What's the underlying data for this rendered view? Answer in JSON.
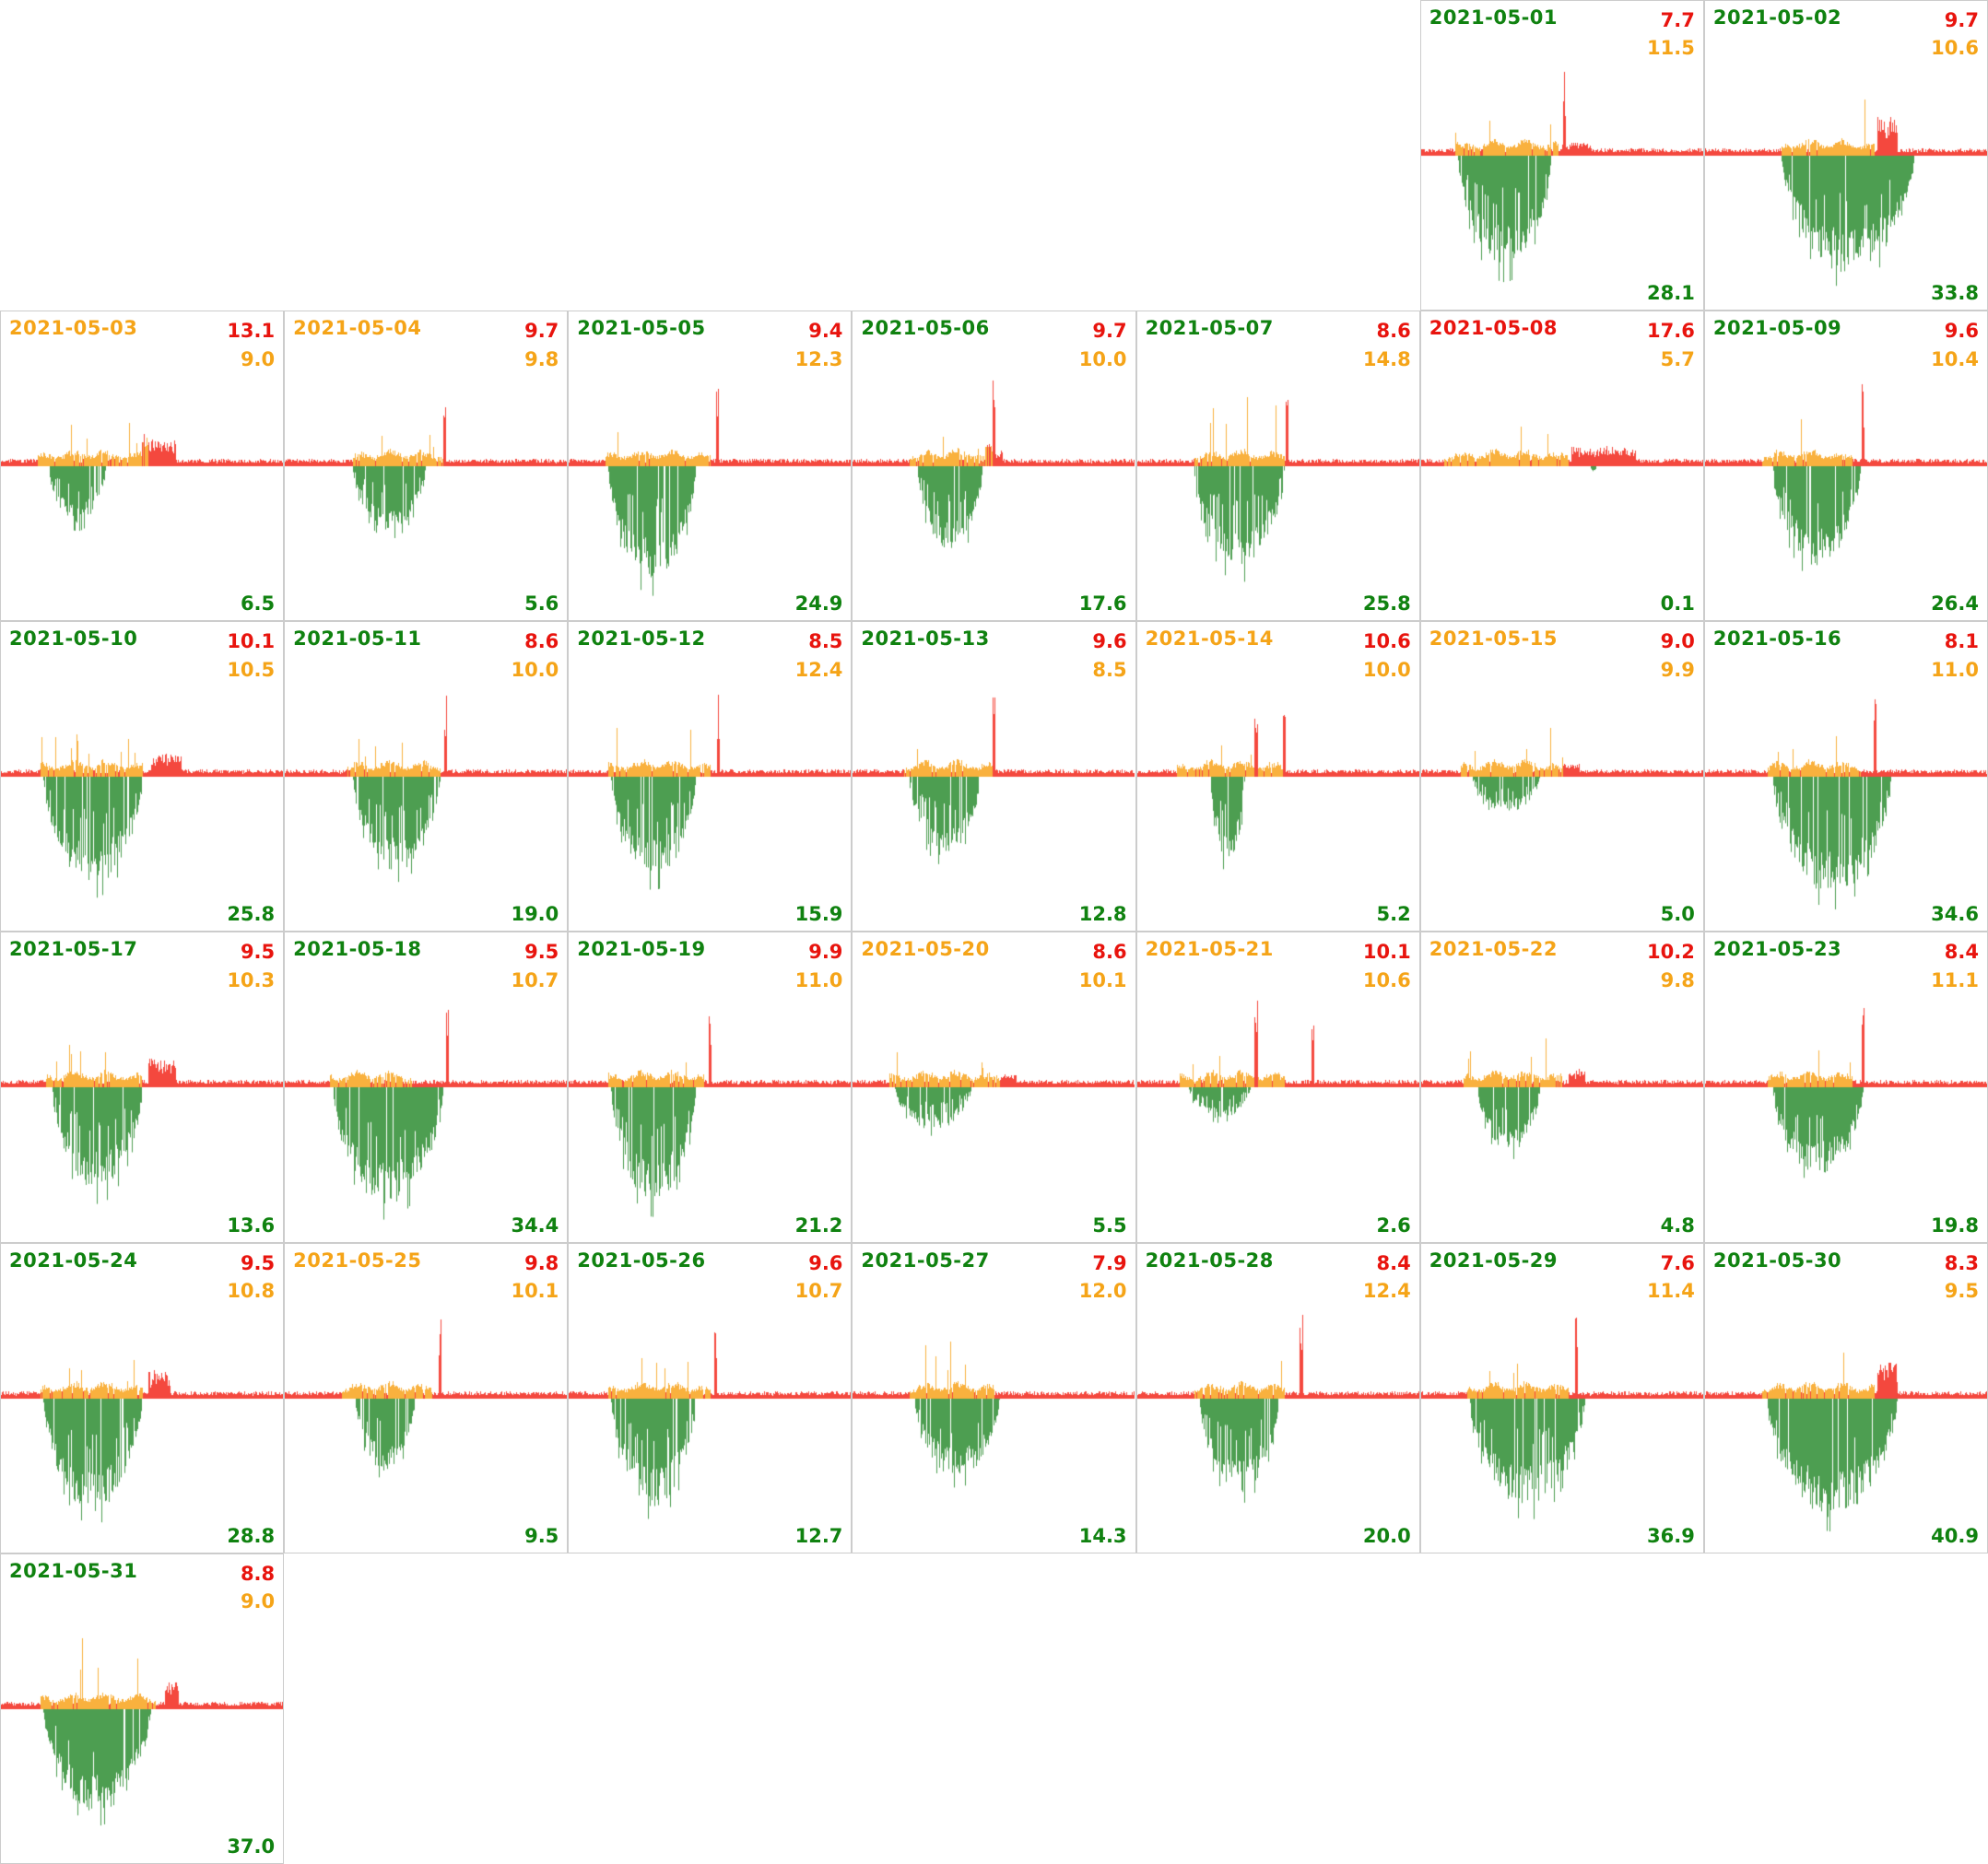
{
  "colors": {
    "bar_red": "#f4483e",
    "bar_orange": "#f9b13e",
    "bar_green": "#4d9e51",
    "text_red": "#e8140e",
    "text_orange": "#f5a418",
    "text_green": "#108210",
    "panel_border": "#cccccc",
    "background": "#ffffff"
  },
  "chart_data": {
    "type": "bar",
    "layout": "calendar-small-multiples-7-columns",
    "description": "One mini bar-chart per day of May 2021. Red/orange bars extend above a midline, green bars extend below it. Each panel shows a red value and an orange value top-right, a green value bottom-right, and the date top-left colored green, orange or red.",
    "legend_position": "none",
    "grid": "off",
    "panels": [
      {
        "date": "2021-05-01",
        "date_color": "green",
        "value_red": "7.7",
        "value_orange": "11.5",
        "value_green": "28.1",
        "row": 1,
        "col": 6,
        "wave": {
          "g": [
            0.13,
            0.46
          ],
          "d": 0.78,
          "sp": 0.6,
          "o": [
            0.12,
            0.49
          ],
          "oh": 0.55,
          "hump": [
            0.5,
            0.6,
            0.18
          ],
          "rs": 0.505
        }
      },
      {
        "date": "2021-05-02",
        "date_color": "green",
        "value_red": "9.7",
        "value_orange": "10.6",
        "value_green": "33.8",
        "row": 1,
        "col": 7,
        "wave": {
          "g": [
            0.27,
            0.74
          ],
          "d": 0.82,
          "sp": 0.35,
          "o": [
            0.27,
            0.6
          ],
          "oh": 0.75,
          "hump": [
            0.61,
            0.68,
            0.85
          ]
        }
      },
      {
        "date": "2021-05-03",
        "date_color": "orange",
        "value_red": "13.1",
        "value_orange": "9.0",
        "value_green": "6.5",
        "row": 2,
        "col": 1,
        "wave": {
          "g": [
            0.17,
            0.37
          ],
          "d": 0.4,
          "sp": 0.8,
          "o": [
            0.13,
            0.52
          ],
          "oh": 0.45,
          "hump": [
            0.5,
            0.62,
            0.55
          ]
        }
      },
      {
        "date": "2021-05-04",
        "date_color": "orange",
        "value_red": "9.7",
        "value_orange": "9.8",
        "value_green": "5.6",
        "row": 2,
        "col": 2,
        "wave": {
          "g": [
            0.24,
            0.5
          ],
          "d": 0.45,
          "sp": 0.95,
          "o": [
            0.24,
            0.56
          ],
          "oh": 0.3,
          "rs": 0.565
        }
      },
      {
        "date": "2021-05-05",
        "date_color": "green",
        "value_red": "9.4",
        "value_orange": "12.3",
        "value_green": "24.9",
        "row": 2,
        "col": 3,
        "wave": {
          "g": [
            0.14,
            0.45
          ],
          "d": 0.8,
          "sp": 0.7,
          "o": [
            0.13,
            0.5
          ],
          "oh": 0.5,
          "rs": 0.525
        }
      },
      {
        "date": "2021-05-06",
        "date_color": "green",
        "value_red": "9.7",
        "value_orange": "10.0",
        "value_green": "17.6",
        "row": 2,
        "col": 4,
        "wave": {
          "g": [
            0.23,
            0.46
          ],
          "d": 0.6,
          "sp": 0.6,
          "o": [
            0.2,
            0.5
          ],
          "oh": 0.35,
          "hump": [
            0.47,
            0.53,
            0.25
          ],
          "rs": 0.5
        }
      },
      {
        "date": "2021-05-07",
        "date_color": "green",
        "value_red": "8.6",
        "value_orange": "14.8",
        "value_green": "25.8",
        "row": 2,
        "col": 5,
        "wave": {
          "g": [
            0.2,
            0.52
          ],
          "d": 0.72,
          "sp": 0.8,
          "o": [
            0.2,
            0.52
          ],
          "oh": 0.9,
          "rs": 0.53
        }
      },
      {
        "date": "2021-05-08",
        "date_color": "red",
        "value_red": "17.6",
        "value_orange": "5.7",
        "value_green": "0.1",
        "row": 2,
        "col": 6,
        "wave": {
          "g": [
            0.6,
            0.62
          ],
          "d": 0.04,
          "sp": 0.5,
          "o": [
            0.08,
            0.52
          ],
          "oh": 0.35,
          "hump": [
            0.53,
            0.76,
            0.35
          ]
        }
      },
      {
        "date": "2021-05-09",
        "date_color": "green",
        "value_red": "9.6",
        "value_orange": "10.4",
        "value_green": "26.4",
        "row": 2,
        "col": 7,
        "wave": {
          "g": [
            0.24,
            0.55
          ],
          "d": 0.7,
          "sp": 0.6,
          "o": [
            0.2,
            0.52
          ],
          "oh": 0.45,
          "rs": 0.56
        }
      },
      {
        "date": "2021-05-10",
        "date_color": "green",
        "value_red": "10.1",
        "value_orange": "10.5",
        "value_green": "25.8",
        "row": 3,
        "col": 1,
        "wave": {
          "g": [
            0.15,
            0.5
          ],
          "d": 0.75,
          "sp": 0.75,
          "o": [
            0.14,
            0.5
          ],
          "oh": 0.5,
          "hump": [
            0.53,
            0.64,
            0.45
          ]
        }
      },
      {
        "date": "2021-05-11",
        "date_color": "green",
        "value_red": "8.6",
        "value_orange": "10.0",
        "value_green": "19.0",
        "row": 3,
        "col": 2,
        "wave": {
          "g": [
            0.24,
            0.55
          ],
          "d": 0.65,
          "sp": 0.7,
          "o": [
            0.22,
            0.55
          ],
          "oh": 0.35,
          "rs": 0.57
        }
      },
      {
        "date": "2021-05-12",
        "date_color": "green",
        "value_red": "8.5",
        "value_orange": "12.4",
        "value_green": "15.9",
        "row": 3,
        "col": 3,
        "wave": {
          "g": [
            0.15,
            0.45
          ],
          "d": 0.7,
          "sp": 0.75,
          "o": [
            0.14,
            0.5
          ],
          "oh": 0.7,
          "rs": 0.53
        }
      },
      {
        "date": "2021-05-13",
        "date_color": "green",
        "value_red": "9.6",
        "value_orange": "8.5",
        "value_green": "12.8",
        "row": 3,
        "col": 4,
        "wave": {
          "g": [
            0.2,
            0.45
          ],
          "d": 0.55,
          "sp": 0.7,
          "o": [
            0.18,
            0.5
          ],
          "oh": 0.3,
          "rs": 0.5
        }
      },
      {
        "date": "2021-05-14",
        "date_color": "orange",
        "value_red": "10.6",
        "value_orange": "10.0",
        "value_green": "5.2",
        "row": 3,
        "col": 5,
        "wave": {
          "g": [
            0.26,
            0.38
          ],
          "d": 0.6,
          "sp": 0.95,
          "o": [
            0.14,
            0.52
          ],
          "oh": 0.45,
          "rs": 0.52,
          "xs": [
            0.42
          ]
        }
      },
      {
        "date": "2021-05-15",
        "date_color": "orange",
        "value_red": "9.0",
        "value_orange": "9.9",
        "value_green": "5.0",
        "row": 3,
        "col": 6,
        "wave": {
          "g": [
            0.18,
            0.42
          ],
          "d": 0.25,
          "sp": 0.85,
          "o": [
            0.14,
            0.5
          ],
          "oh": 0.5,
          "hump": [
            0.5,
            0.56,
            0.2
          ]
        }
      },
      {
        "date": "2021-05-16",
        "date_color": "green",
        "value_red": "8.1",
        "value_orange": "11.0",
        "value_green": "34.6",
        "row": 3,
        "col": 7,
        "wave": {
          "g": [
            0.24,
            0.66
          ],
          "d": 0.82,
          "sp": 0.5,
          "o": [
            0.22,
            0.55
          ],
          "oh": 0.4,
          "rs": 0.6
        }
      },
      {
        "date": "2021-05-17",
        "date_color": "green",
        "value_red": "9.5",
        "value_orange": "10.3",
        "value_green": "13.6",
        "row": 4,
        "col": 1,
        "wave": {
          "g": [
            0.18,
            0.5
          ],
          "d": 0.72,
          "sp": 0.75,
          "o": [
            0.16,
            0.5
          ],
          "oh": 0.4,
          "hump": [
            0.52,
            0.62,
            0.6
          ]
        }
      },
      {
        "date": "2021-05-18",
        "date_color": "green",
        "value_red": "9.5",
        "value_orange": "10.7",
        "value_green": "34.4",
        "row": 4,
        "col": 2,
        "wave": {
          "g": [
            0.17,
            0.56
          ],
          "d": 0.82,
          "sp": 0.55,
          "o": [
            0.16,
            0.45
          ],
          "oh": 0.45,
          "rs": 0.575
        }
      },
      {
        "date": "2021-05-19",
        "date_color": "green",
        "value_red": "9.9",
        "value_orange": "11.0",
        "value_green": "21.2",
        "row": 4,
        "col": 3,
        "wave": {
          "g": [
            0.15,
            0.45
          ],
          "d": 0.8,
          "sp": 0.65,
          "o": [
            0.14,
            0.48
          ],
          "oh": 0.55,
          "rs": 0.5
        }
      },
      {
        "date": "2021-05-20",
        "date_color": "orange",
        "value_red": "8.6",
        "value_orange": "10.1",
        "value_green": "5.5",
        "row": 4,
        "col": 4,
        "wave": {
          "g": [
            0.15,
            0.42
          ],
          "d": 0.3,
          "sp": 0.8,
          "o": [
            0.13,
            0.52
          ],
          "oh": 0.35,
          "hump": [
            0.52,
            0.58,
            0.2
          ]
        }
      },
      {
        "date": "2021-05-21",
        "date_color": "orange",
        "value_red": "10.1",
        "value_orange": "10.6",
        "value_green": "2.6",
        "row": 4,
        "col": 5,
        "wave": {
          "g": [
            0.18,
            0.4
          ],
          "d": 0.22,
          "sp": 0.8,
          "o": [
            0.15,
            0.52
          ],
          "oh": 0.35,
          "rs": 0.42,
          "xs": [
            0.62
          ]
        }
      },
      {
        "date": "2021-05-22",
        "date_color": "orange",
        "value_red": "10.2",
        "value_orange": "9.8",
        "value_green": "4.8",
        "row": 4,
        "col": 6,
        "wave": {
          "g": [
            0.2,
            0.42
          ],
          "d": 0.45,
          "sp": 0.85,
          "o": [
            0.15,
            0.5
          ],
          "oh": 0.55,
          "hump": [
            0.52,
            0.58,
            0.3
          ]
        }
      },
      {
        "date": "2021-05-23",
        "date_color": "green",
        "value_red": "8.4",
        "value_orange": "11.1",
        "value_green": "19.8",
        "row": 4,
        "col": 7,
        "wave": {
          "g": [
            0.24,
            0.56
          ],
          "d": 0.6,
          "sp": 0.6,
          "o": [
            0.22,
            0.52
          ],
          "oh": 0.4,
          "rs": 0.56
        }
      },
      {
        "date": "2021-05-24",
        "date_color": "green",
        "value_red": "9.5",
        "value_orange": "10.8",
        "value_green": "28.8",
        "row": 5,
        "col": 1,
        "wave": {
          "g": [
            0.15,
            0.5
          ],
          "d": 0.78,
          "sp": 0.7,
          "o": [
            0.14,
            0.5
          ],
          "oh": 0.4,
          "hump": [
            0.52,
            0.6,
            0.55
          ]
        }
      },
      {
        "date": "2021-05-25",
        "date_color": "orange",
        "value_red": "9.8",
        "value_orange": "10.1",
        "value_green": "9.5",
        "row": 5,
        "col": 2,
        "wave": {
          "g": [
            0.25,
            0.46
          ],
          "d": 0.5,
          "sp": 0.6,
          "o": [
            0.2,
            0.52
          ],
          "oh": 0.3,
          "rs": 0.55
        }
      },
      {
        "date": "2021-05-26",
        "date_color": "green",
        "value_red": "9.6",
        "value_orange": "10.7",
        "value_green": "12.7",
        "row": 5,
        "col": 3,
        "wave": {
          "g": [
            0.15,
            0.45
          ],
          "d": 0.75,
          "sp": 0.65,
          "o": [
            0.14,
            0.5
          ],
          "oh": 0.45,
          "rs": 0.52
        }
      },
      {
        "date": "2021-05-27",
        "date_color": "green",
        "value_red": "7.9",
        "value_orange": "12.0",
        "value_green": "14.3",
        "row": 5,
        "col": 4,
        "wave": {
          "g": [
            0.22,
            0.52
          ],
          "d": 0.55,
          "sp": 0.55,
          "o": [
            0.2,
            0.5
          ],
          "oh": 0.6
        }
      },
      {
        "date": "2021-05-28",
        "date_color": "green",
        "value_red": "8.4",
        "value_orange": "12.4",
        "value_green": "20.0",
        "row": 5,
        "col": 5,
        "wave": {
          "g": [
            0.22,
            0.5
          ],
          "d": 0.65,
          "sp": 0.6,
          "o": [
            0.2,
            0.52
          ],
          "oh": 0.8,
          "rs": 0.58
        }
      },
      {
        "date": "2021-05-29",
        "date_color": "green",
        "value_red": "7.6",
        "value_orange": "11.4",
        "value_green": "36.9",
        "row": 5,
        "col": 6,
        "wave": {
          "g": [
            0.17,
            0.58
          ],
          "d": 0.75,
          "sp": 0.45,
          "o": [
            0.16,
            0.52
          ],
          "oh": 0.5,
          "rs": 0.55
        }
      },
      {
        "date": "2021-05-30",
        "date_color": "green",
        "value_red": "8.3",
        "value_orange": "9.5",
        "value_green": "40.9",
        "row": 5,
        "col": 7,
        "wave": {
          "g": [
            0.22,
            0.68
          ],
          "d": 0.82,
          "sp": 0.2,
          "o": [
            0.2,
            0.6
          ],
          "oh": 0.5,
          "hump": [
            0.61,
            0.68,
            0.8
          ]
        }
      },
      {
        "date": "2021-05-31",
        "date_color": "green",
        "value_red": "8.8",
        "value_orange": "9.0",
        "value_green": "37.0",
        "row": 6,
        "col": 1,
        "wave": {
          "g": [
            0.15,
            0.53
          ],
          "d": 0.72,
          "sp": 0.3,
          "o": [
            0.14,
            0.55
          ],
          "oh": 0.8,
          "hump": [
            0.58,
            0.63,
            0.7
          ]
        }
      }
    ]
  }
}
